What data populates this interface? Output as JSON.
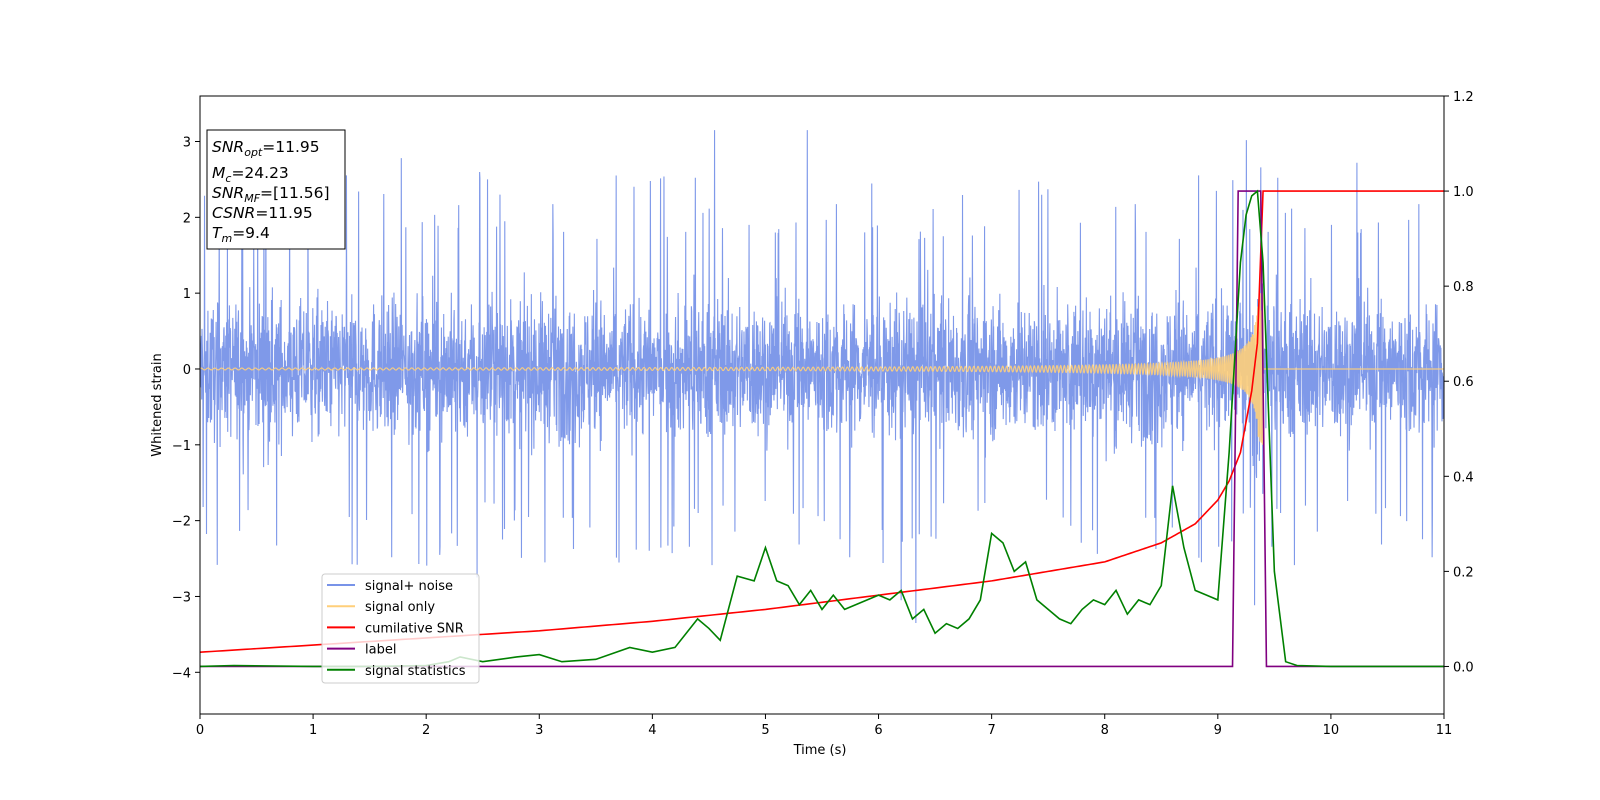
{
  "chart_data": {
    "type": "line",
    "xlabel": "Time (s)",
    "ylabel": "Whitened strain",
    "xlim": [
      0,
      11
    ],
    "ylim_left": [
      -4.55,
      3.6
    ],
    "ylim_right": [
      -0.1,
      1.2
    ],
    "x_ticks": [
      "0",
      "1",
      "2",
      "3",
      "4",
      "5",
      "6",
      "7",
      "8",
      "9",
      "10",
      "11"
    ],
    "y_ticks_left": [
      "−4",
      "−3",
      "−2",
      "−1",
      "0",
      "1",
      "2",
      "3"
    ],
    "y_ticks_right": [
      "0.0",
      "0.2",
      "0.4",
      "0.6",
      "0.8",
      "1.0",
      "1.2"
    ],
    "grid": false,
    "legend_placement": "lower-left",
    "info_box": {
      "placement": "top-left",
      "lines": [
        {
          "sym": "SNR",
          "sub": "opt",
          "val": "=11.95"
        },
        {
          "sym": "M",
          "sub": "c",
          "val": "=24.23"
        },
        {
          "sym": "SNR",
          "sub": "MF",
          "val": "=[11.56]"
        },
        {
          "sym": "CSNR",
          "sub": "",
          "val": "=11.95"
        },
        {
          "sym": "T",
          "sub": "m",
          "val": "=9.4"
        }
      ]
    },
    "series": [
      {
        "name": "signal+ noise",
        "axis": "left",
        "color": "#7893e8",
        "style": "dense whitened noise, approx. uniform envelope about ±1.6 with spikes to ~±2.8",
        "peak_spikes": [
          {
            "x": 4.55,
            "y": 3.15
          },
          {
            "x": 5.37,
            "y": 3.15
          },
          {
            "x": 9.38,
            "y": 3.25
          },
          {
            "x": 1.78,
            "y": 2.78
          },
          {
            "x": 10.23,
            "y": 2.72
          },
          {
            "x": 6.33,
            "y": -3.35
          },
          {
            "x": 6.2,
            "y": -3.05
          },
          {
            "x": 2.45,
            "y": -2.75
          },
          {
            "x": 3.05,
            "y": -2.55
          }
        ]
      },
      {
        "name": "signal only",
        "axis": "left",
        "color": "#ffcf7a",
        "style": "chirp, amplitude grows from ~0.02 to ~1.0 at merger time 9.4 then zero",
        "merger_time": 9.4
      },
      {
        "name": "cumilative SNR",
        "axis": "right",
        "color": "#ff0000",
        "x": [
          0,
          1,
          2,
          3,
          4,
          5,
          6,
          7,
          7.5,
          8,
          8.5,
          8.8,
          9,
          9.1,
          9.2,
          9.3,
          9.35,
          9.4,
          11
        ],
        "y": [
          0.03,
          0.045,
          0.06,
          0.075,
          0.095,
          0.12,
          0.15,
          0.18,
          0.2,
          0.22,
          0.26,
          0.3,
          0.35,
          0.39,
          0.45,
          0.58,
          0.68,
          1.0,
          1.0
        ]
      },
      {
        "name": "label",
        "axis": "right",
        "color": "#800080",
        "x": [
          0,
          9.13,
          9.18,
          9.38,
          9.43,
          11
        ],
        "y": [
          0.0,
          0.0,
          1.0,
          1.0,
          0.0,
          0.0
        ]
      },
      {
        "name": "signal statistics",
        "axis": "right",
        "color": "#008000",
        "x": [
          0,
          0.3,
          1,
          1.5,
          2,
          2.2,
          2.3,
          2.5,
          2.8,
          3.0,
          3.2,
          3.5,
          3.8,
          4.0,
          4.2,
          4.4,
          4.5,
          4.6,
          4.75,
          4.9,
          5.0,
          5.1,
          5.2,
          5.3,
          5.4,
          5.5,
          5.6,
          5.7,
          5.8,
          5.9,
          6.0,
          6.1,
          6.2,
          6.3,
          6.4,
          6.5,
          6.6,
          6.7,
          6.8,
          6.9,
          7.0,
          7.1,
          7.2,
          7.3,
          7.4,
          7.5,
          7.6,
          7.7,
          7.8,
          7.9,
          8.0,
          8.1,
          8.2,
          8.3,
          8.4,
          8.5,
          8.6,
          8.7,
          8.8,
          8.9,
          9.0,
          9.1,
          9.2,
          9.25,
          9.3,
          9.35,
          9.4,
          9.5,
          9.6,
          9.7,
          10,
          11
        ],
        "y": [
          0.0,
          0.002,
          0.0,
          0.0,
          0.002,
          0.01,
          0.02,
          0.01,
          0.02,
          0.025,
          0.01,
          0.015,
          0.04,
          0.03,
          0.04,
          0.1,
          0.08,
          0.055,
          0.19,
          0.18,
          0.25,
          0.18,
          0.17,
          0.13,
          0.16,
          0.12,
          0.15,
          0.12,
          0.13,
          0.14,
          0.15,
          0.14,
          0.16,
          0.1,
          0.12,
          0.07,
          0.09,
          0.08,
          0.1,
          0.14,
          0.28,
          0.26,
          0.2,
          0.22,
          0.14,
          0.12,
          0.1,
          0.09,
          0.12,
          0.14,
          0.13,
          0.16,
          0.11,
          0.14,
          0.13,
          0.17,
          0.38,
          0.25,
          0.16,
          0.15,
          0.14,
          0.45,
          0.85,
          0.95,
          0.99,
          1.0,
          0.85,
          0.2,
          0.01,
          0.002,
          0.0,
          0.0
        ]
      }
    ]
  }
}
